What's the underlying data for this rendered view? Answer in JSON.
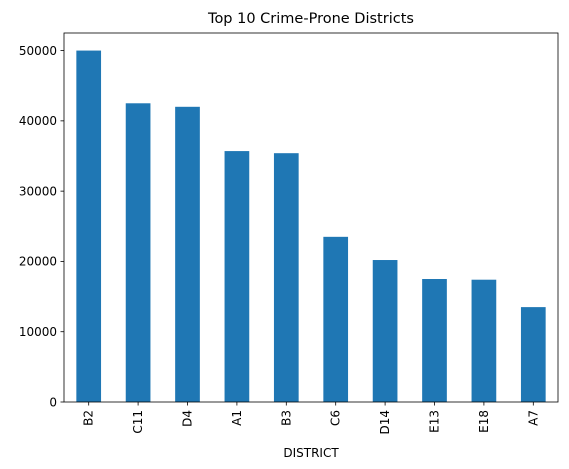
{
  "chart_data": {
    "type": "bar",
    "title": "Top 10 Crime-Prone Districts",
    "xlabel": "DISTRICT",
    "ylabel": "",
    "categories": [
      "B2",
      "C11",
      "D4",
      "A1",
      "B3",
      "C6",
      "D14",
      "E13",
      "E18",
      "A7"
    ],
    "values": [
      50000,
      42500,
      42000,
      35700,
      35400,
      23500,
      20200,
      17500,
      17400,
      13500
    ],
    "ylim": [
      0,
      52500
    ],
    "yticks": [
      0,
      10000,
      20000,
      30000,
      40000,
      50000
    ],
    "grid": false,
    "legend": "none",
    "bar_color": "#1f77b4"
  }
}
